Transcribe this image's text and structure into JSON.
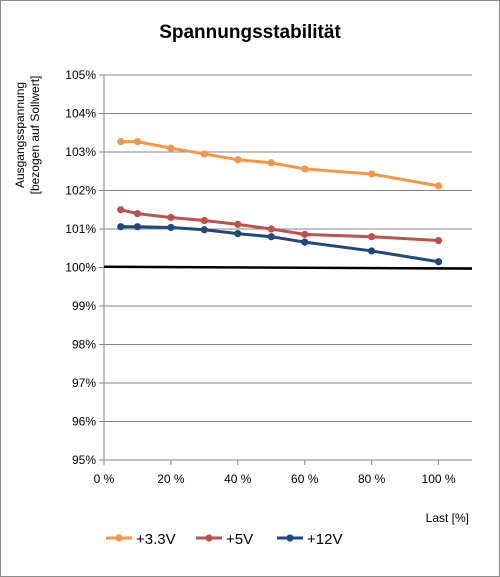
{
  "chart_data": {
    "type": "line",
    "title": "Spannungsstabilität",
    "ylabel_lines": [
      "Ausgangsspannung",
      "[bezogen auf Sollwert]"
    ],
    "xlabel": "Last [%]",
    "xlim": [
      0,
      110
    ],
    "ylim": [
      95,
      105
    ],
    "x_ticks": [
      0,
      20,
      40,
      60,
      80,
      100
    ],
    "x_tick_labels": [
      "0 %",
      "20 %",
      "40 %",
      "60 %",
      "80 %",
      "100 %"
    ],
    "y_ticks": [
      95,
      96,
      97,
      98,
      99,
      100,
      101,
      102,
      103,
      104,
      105
    ],
    "y_tick_labels": [
      "95%",
      "96%",
      "97%",
      "98%",
      "99%",
      "100%",
      "101%",
      "102%",
      "103%",
      "104%",
      "105%"
    ],
    "grid": "horizontal",
    "legend_position": "bottom",
    "reference_line": {
      "y_start": 100.02,
      "y_end": 99.97,
      "x_start": 0,
      "x_end": 110,
      "color": "#000000"
    },
    "series": [
      {
        "name": "+3.3V",
        "color": "#F79646",
        "x": [
          5,
          10,
          20,
          30,
          40,
          50,
          60,
          80,
          100
        ],
        "values": [
          103.27,
          103.27,
          103.1,
          102.95,
          102.8,
          102.72,
          102.56,
          102.43,
          102.12
        ]
      },
      {
        "name": "+5V",
        "color": "#C0504D",
        "x": [
          5,
          10,
          20,
          30,
          40,
          50,
          60,
          80,
          100
        ],
        "values": [
          101.5,
          101.4,
          101.3,
          101.22,
          101.12,
          101.0,
          100.86,
          100.8,
          100.7
        ]
      },
      {
        "name": "+12V",
        "color": "#1F497D",
        "x": [
          5,
          10,
          20,
          30,
          40,
          50,
          60,
          80,
          100
        ],
        "values": [
          101.06,
          101.06,
          101.04,
          100.98,
          100.88,
          100.8,
          100.66,
          100.43,
          100.15
        ]
      }
    ]
  }
}
